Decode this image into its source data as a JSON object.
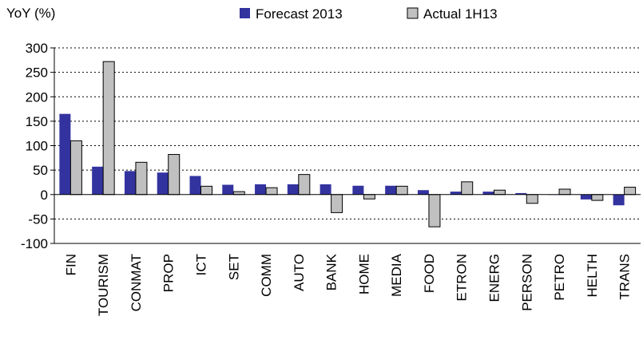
{
  "chart_data": {
    "type": "bar",
    "title": "",
    "ylabel": "YoY (%)",
    "xlabel": "",
    "ylim": [
      -100,
      300
    ],
    "yticks": [
      -100,
      -50,
      0,
      50,
      100,
      150,
      200,
      250,
      300
    ],
    "grid": true,
    "legend_position": "top",
    "categories": [
      "FIN",
      "TOURISM",
      "CONMAT",
      "PROP",
      "ICT",
      "SET",
      "COMM",
      "AUTO",
      "BANK",
      "HOME",
      "MEDIA",
      "FOOD",
      "ETRON",
      "ENERG",
      "PERSON",
      "PETRO",
      "HELTH",
      "TRANS"
    ],
    "series": [
      {
        "name": "Forecast 2013",
        "color": "#3333a0",
        "values": [
          165,
          57,
          48,
          45,
          38,
          20,
          21,
          21,
          21,
          18,
          18,
          9,
          6,
          6,
          3,
          0,
          -10,
          -22
        ]
      },
      {
        "name": "Actual 1H13",
        "color": "#c0c0c0",
        "values": [
          110,
          272,
          66,
          82,
          17,
          6,
          14,
          41,
          -37,
          -9,
          17,
          -66,
          26,
          9,
          -18,
          11,
          -12,
          15
        ]
      }
    ]
  }
}
